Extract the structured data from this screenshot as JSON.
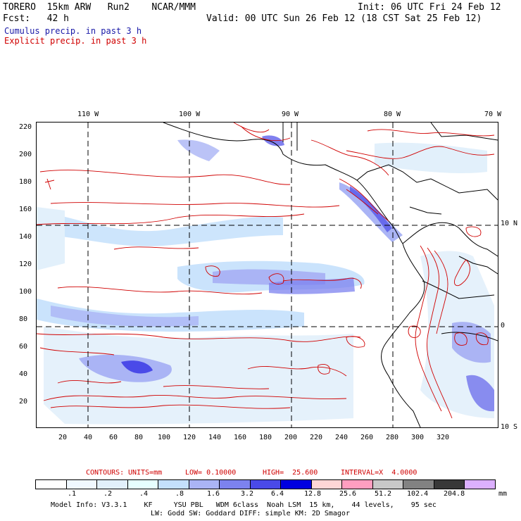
{
  "header": {
    "model": "TORERO  15km ARW   Run2    NCAR/MMM",
    "init": "Init: 06 UTC Fri 24 Feb 12",
    "fcst": "Fcst:   42 h",
    "valid": "Valid: 00 UTC Sun 26 Feb 12 (18 CST Sat 25 Feb 12)",
    "field1": "Cumulus precip. in past 3 h",
    "field2": "Explicit precip. in past 3 h",
    "field1_color": "#1a1aa8",
    "field2_color": "#d00000"
  },
  "axes": {
    "top_lon": [
      "110 W",
      "100 W",
      "90 W",
      "80 W",
      "70 W"
    ],
    "right_lat": [
      "10 N",
      "0",
      "10 S"
    ],
    "left_grid": [
      "220",
      "200",
      "180",
      "160",
      "140",
      "120",
      "100",
      "80",
      "60",
      "40",
      "20"
    ],
    "bottom_grid": [
      "20",
      "40",
      "60",
      "80",
      "100",
      "120",
      "140",
      "160",
      "180",
      "200",
      "220",
      "240",
      "260",
      "280",
      "300",
      "320"
    ]
  },
  "contours": {
    "label": "CONTOURS:",
    "units": "UNITS=mm",
    "low": "LOW= 0.10000",
    "high": "HIGH=  25.600",
    "interval": "INTERVAL=X  4.0000"
  },
  "colorbar": {
    "labels": [
      ".1",
      ".2",
      ".4",
      ".8",
      "1.6",
      "3.2",
      "6.4",
      "12.8",
      "25.6",
      "51.2",
      "102.4",
      "204.8"
    ],
    "unit": "mm",
    "colors": [
      "#ffffff",
      "#f0f8ff",
      "#e2f0fb",
      "#e6ffff",
      "#c4e0fc",
      "#aab4f5",
      "#7c82ef",
      "#4a4ae8",
      "#0000e0",
      "#ffd6d6",
      "#ff9ec0",
      "#c8c8c8",
      "#828282",
      "#383838",
      "#dcb0ff"
    ]
  },
  "footer": {
    "line1": "Model Info: V3.3.1    KF     YSU PBL   WDM 6class  Noah LSM  15 km,    44 levels,    95 sec",
    "line2": "LW: Godd SW: Goddard DIFF: simple KM: 2D Smagor"
  }
}
